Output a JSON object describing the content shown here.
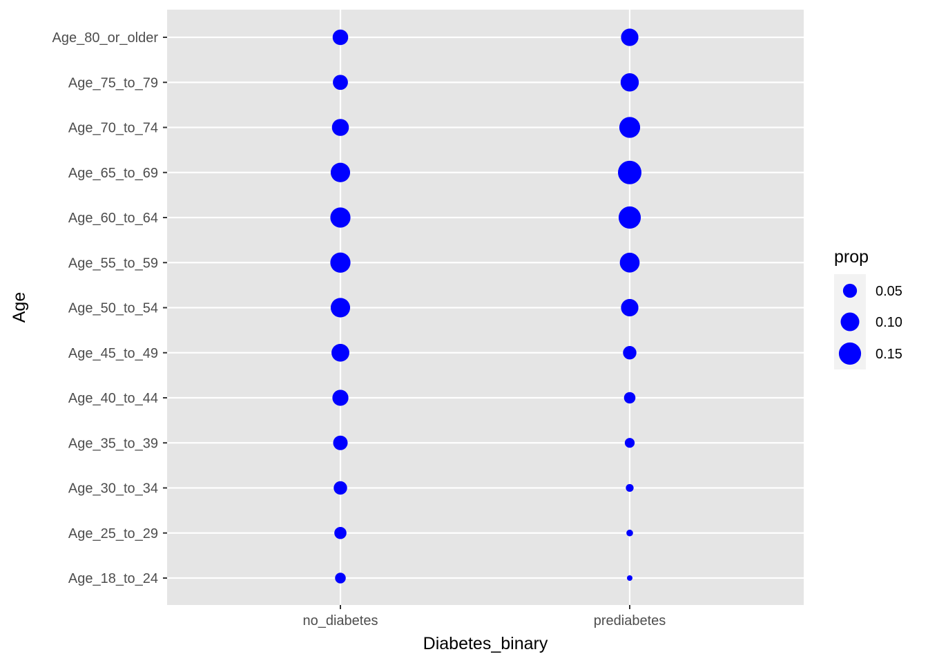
{
  "chart_data": {
    "type": "scatter",
    "title": "",
    "xlabel": "Diabetes_binary",
    "ylabel": "Age",
    "x_categories": [
      "no_diabetes",
      "prediabetes"
    ],
    "y_categories": [
      "Age_18_to_24",
      "Age_25_to_29",
      "Age_30_to_34",
      "Age_35_to_39",
      "Age_40_to_44",
      "Age_45_to_49",
      "Age_50_to_54",
      "Age_55_to_59",
      "Age_60_to_64",
      "Age_65_to_69",
      "Age_70_to_74",
      "Age_75_to_79",
      "Age_80_or_older"
    ],
    "size_variable": "prop",
    "point_color": "#0000ff",
    "grid": true,
    "legend_position": "right",
    "series": [
      {
        "x": "no_diabetes",
        "values": [
          0.025,
          0.035,
          0.045,
          0.055,
          0.07,
          0.09,
          0.11,
          0.12,
          0.12,
          0.11,
          0.08,
          0.06,
          0.065
        ]
      },
      {
        "x": "prediabetes",
        "values": [
          0.003,
          0.006,
          0.01,
          0.02,
          0.03,
          0.045,
          0.085,
          0.115,
          0.15,
          0.17,
          0.13,
          0.095,
          0.085
        ]
      }
    ],
    "legend": {
      "title": "prop",
      "items": [
        {
          "label": "0.05",
          "value": 0.05
        },
        {
          "label": "0.10",
          "value": 0.1
        },
        {
          "label": "0.15",
          "value": 0.15
        }
      ]
    }
  }
}
